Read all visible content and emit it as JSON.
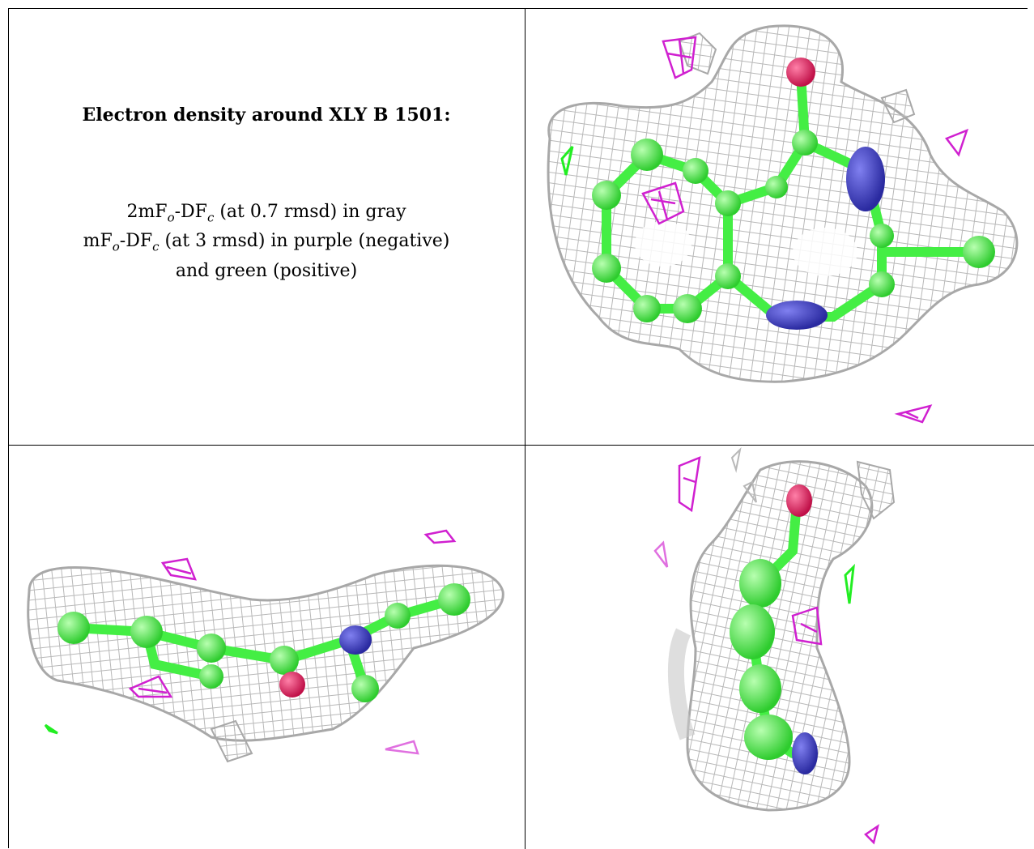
{
  "title": "Electron density around XLY B 1501:",
  "legend": {
    "line1_prefix": "2mF",
    "line1_sub1": "o",
    "line1_mid": "-DF",
    "line1_sub2": "c",
    "line1_suffix": " (at 0.7 rmsd) in gray",
    "line2_prefix": "mF",
    "line2_sub1": "o",
    "line2_mid": "-DF",
    "line2_sub2": "c",
    "line2_suffix": " (at 3 rmsd) in purple (negative)",
    "line3": "and green (positive)"
  },
  "colors": {
    "mesh_gray": "#b8b8b8",
    "negative_purple": "#d020d0",
    "positive_green": "#22ee22",
    "carbon_green": "#44ee44",
    "nitrogen_blue": "#3c3cc0",
    "oxygen_red": "#e0205a"
  },
  "panels": [
    {
      "name": "view-top-right"
    },
    {
      "name": "view-bottom-left"
    },
    {
      "name": "view-bottom-right"
    }
  ]
}
